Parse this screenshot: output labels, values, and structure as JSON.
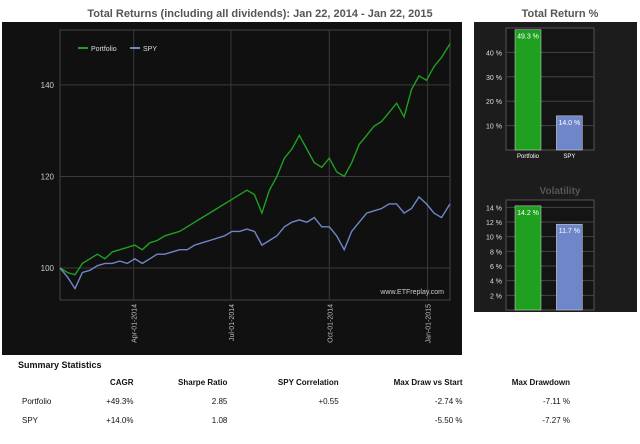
{
  "main_title": "Total Returns (including all dividends): Jan 22, 2014 - Jan 22, 2015",
  "watermark": "www.ETFreplay.com",
  "summary": {
    "title": "Summary Statistics",
    "columns": [
      "",
      "CAGR",
      "Sharpe Ratio",
      "SPY Correlation",
      "Max Draw vs Start",
      "Max Drawdown"
    ],
    "rows": [
      {
        "cells": [
          "Portfolio",
          "+49.3%",
          "2.85",
          "+0.55",
          "-2.74 %",
          "-7.11 %"
        ]
      },
      {
        "cells": [
          "SPY",
          "+14.0%",
          "1.08",
          "",
          "-5.50 %",
          "-7.27 %"
        ]
      }
    ]
  },
  "colors": {
    "portfolio": "#1fa01f",
    "spy": "#6f86c8",
    "panel": "#111111",
    "grid": "#3a3a3a"
  },
  "chart_data": [
    {
      "type": "line",
      "title": "Total Returns (including all dividends): Jan 22, 2014 - Jan 22, 2015",
      "xlabel": "",
      "ylabel": "",
      "x_tick_labels": [
        "Apr-01-2014",
        "Jul-01-2014",
        "Oct-01-2014",
        "Jan-01-2015"
      ],
      "y_ticks": [
        100,
        120,
        140
      ],
      "ylim": [
        93,
        152
      ],
      "legend": "top-left",
      "grid": true,
      "series": [
        {
          "name": "Portfolio",
          "color": "#1fa01f",
          "points": [
            [
              "2014-01-22",
              100
            ],
            [
              "2014-01-29",
              99
            ],
            [
              "2014-02-05",
              98.5
            ],
            [
              "2014-02-12",
              101
            ],
            [
              "2014-02-19",
              102
            ],
            [
              "2014-02-26",
              103
            ],
            [
              "2014-03-05",
              102
            ],
            [
              "2014-03-12",
              103.5
            ],
            [
              "2014-03-19",
              104
            ],
            [
              "2014-03-26",
              104.5
            ],
            [
              "2014-04-02",
              105
            ],
            [
              "2014-04-09",
              104
            ],
            [
              "2014-04-16",
              105.5
            ],
            [
              "2014-04-23",
              106
            ],
            [
              "2014-04-30",
              107
            ],
            [
              "2014-05-07",
              107.5
            ],
            [
              "2014-05-14",
              108
            ],
            [
              "2014-05-21",
              109
            ],
            [
              "2014-05-28",
              110
            ],
            [
              "2014-06-04",
              111
            ],
            [
              "2014-06-11",
              112
            ],
            [
              "2014-06-18",
              113
            ],
            [
              "2014-06-25",
              114
            ],
            [
              "2014-07-02",
              115
            ],
            [
              "2014-07-09",
              116
            ],
            [
              "2014-07-16",
              117
            ],
            [
              "2014-07-23",
              116
            ],
            [
              "2014-07-30",
              112
            ],
            [
              "2014-08-06",
              117
            ],
            [
              "2014-08-13",
              120
            ],
            [
              "2014-08-20",
              124
            ],
            [
              "2014-08-27",
              126
            ],
            [
              "2014-09-03",
              129
            ],
            [
              "2014-09-10",
              126
            ],
            [
              "2014-09-17",
              123
            ],
            [
              "2014-09-24",
              122
            ],
            [
              "2014-10-01",
              124
            ],
            [
              "2014-10-08",
              121
            ],
            [
              "2014-10-15",
              120
            ],
            [
              "2014-10-22",
              123
            ],
            [
              "2014-10-29",
              127
            ],
            [
              "2014-11-05",
              129
            ],
            [
              "2014-11-12",
              131
            ],
            [
              "2014-11-19",
              132
            ],
            [
              "2014-11-26",
              134
            ],
            [
              "2014-12-03",
              136
            ],
            [
              "2014-12-10",
              133
            ],
            [
              "2014-12-17",
              139
            ],
            [
              "2014-12-24",
              142
            ],
            [
              "2014-12-31",
              141
            ],
            [
              "2015-01-07",
              144
            ],
            [
              "2015-01-14",
              146
            ],
            [
              "2015-01-22",
              149
            ]
          ]
        },
        {
          "name": "SPY",
          "color": "#6f86c8",
          "points": [
            [
              "2014-01-22",
              100
            ],
            [
              "2014-01-29",
              98
            ],
            [
              "2014-02-05",
              95.5
            ],
            [
              "2014-02-12",
              99
            ],
            [
              "2014-02-19",
              99.5
            ],
            [
              "2014-02-26",
              100.5
            ],
            [
              "2014-03-05",
              101
            ],
            [
              "2014-03-12",
              101
            ],
            [
              "2014-03-19",
              101.5
            ],
            [
              "2014-03-26",
              101
            ],
            [
              "2014-04-02",
              102
            ],
            [
              "2014-04-09",
              101
            ],
            [
              "2014-04-16",
              102
            ],
            [
              "2014-04-23",
              103
            ],
            [
              "2014-04-30",
              103
            ],
            [
              "2014-05-07",
              103.5
            ],
            [
              "2014-05-14",
              104
            ],
            [
              "2014-05-21",
              104
            ],
            [
              "2014-05-28",
              105
            ],
            [
              "2014-06-04",
              105.5
            ],
            [
              "2014-06-11",
              106
            ],
            [
              "2014-06-18",
              106.5
            ],
            [
              "2014-06-25",
              107
            ],
            [
              "2014-07-02",
              108
            ],
            [
              "2014-07-09",
              108
            ],
            [
              "2014-07-16",
              108.5
            ],
            [
              "2014-07-23",
              108
            ],
            [
              "2014-07-30",
              105
            ],
            [
              "2014-08-06",
              106
            ],
            [
              "2014-08-13",
              107
            ],
            [
              "2014-08-20",
              109
            ],
            [
              "2014-08-27",
              110
            ],
            [
              "2014-09-03",
              110.5
            ],
            [
              "2014-09-10",
              110
            ],
            [
              "2014-09-17",
              111
            ],
            [
              "2014-09-24",
              109
            ],
            [
              "2014-10-01",
              109
            ],
            [
              "2014-10-08",
              107
            ],
            [
              "2014-10-15",
              104
            ],
            [
              "2014-10-22",
              108
            ],
            [
              "2014-10-29",
              110
            ],
            [
              "2014-11-05",
              112
            ],
            [
              "2014-11-12",
              112.5
            ],
            [
              "2014-11-19",
              113
            ],
            [
              "2014-11-26",
              114
            ],
            [
              "2014-12-03",
              114
            ],
            [
              "2014-12-10",
              112
            ],
            [
              "2014-12-17",
              113
            ],
            [
              "2014-12-24",
              115.5
            ],
            [
              "2014-12-31",
              114
            ],
            [
              "2015-01-07",
              112
            ],
            [
              "2015-01-14",
              111
            ],
            [
              "2015-01-22",
              114
            ]
          ]
        }
      ]
    },
    {
      "type": "bar",
      "title": "Total Return %",
      "categories": [
        "Portfolio",
        "SPY"
      ],
      "values": [
        49.3,
        14.0
      ],
      "value_labels": [
        "49.3 %",
        "14.0 %"
      ],
      "ylim": [
        0,
        50
      ],
      "y_ticks": [
        10,
        20,
        30,
        40
      ],
      "y_tick_labels": [
        "10 %",
        "20 %",
        "30 %",
        "40 %"
      ]
    },
    {
      "type": "bar",
      "title": "Volatility",
      "categories": [
        "Portfolio",
        "SPY"
      ],
      "values": [
        14.2,
        11.7
      ],
      "value_labels": [
        "14.2 %",
        "11.7 %"
      ],
      "ylim": [
        0,
        15
      ],
      "y_ticks": [
        2,
        4,
        6,
        8,
        10,
        12,
        14
      ],
      "y_tick_labels": [
        "2 %",
        "4 %",
        "6 %",
        "8 %",
        "10 %",
        "12 %",
        "14 %"
      ]
    }
  ]
}
